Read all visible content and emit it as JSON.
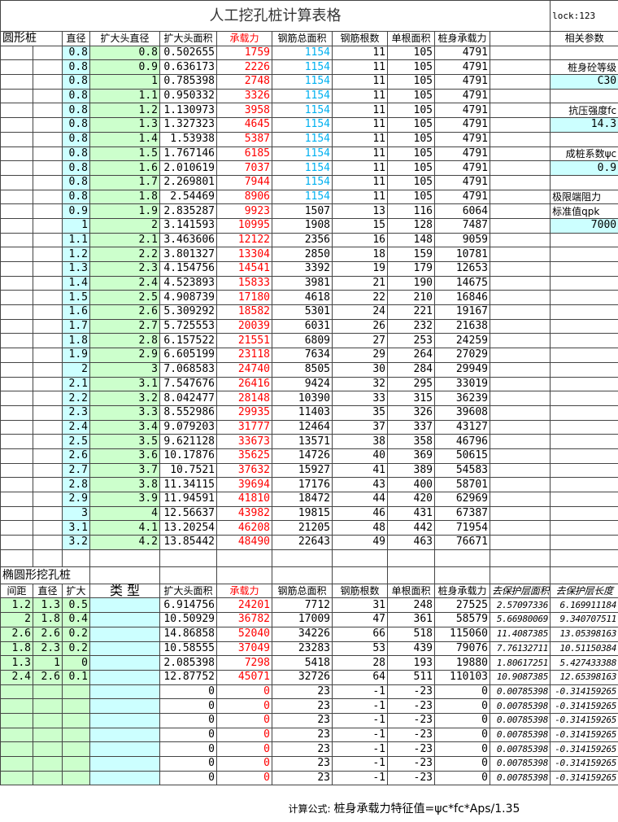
{
  "title": "人工挖孔桩计算表格",
  "lock": "lock:123",
  "circular": {
    "section_label": "圆形桩",
    "headers": [
      "直径",
      "扩大头直径",
      "扩大头面积",
      "承载力",
      "钢筋总面积",
      "钢筋根数",
      "单根面积",
      "桩身承载力"
    ],
    "rows": [
      {
        "v": [
          "0.8",
          "0.8",
          "0.502655",
          "1759",
          "1154",
          "11",
          "105",
          "4791"
        ],
        "hl": true
      },
      {
        "v": [
          "0.8",
          "0.9",
          "0.636173",
          "2226",
          "1154",
          "11",
          "105",
          "4791"
        ],
        "hl": true
      },
      {
        "v": [
          "0.8",
          "1",
          "0.785398",
          "2748",
          "1154",
          "11",
          "105",
          "4791"
        ],
        "hl": true
      },
      {
        "v": [
          "0.8",
          "1.1",
          "0.950332",
          "3326",
          "1154",
          "11",
          "105",
          "4791"
        ],
        "hl": true
      },
      {
        "v": [
          "0.8",
          "1.2",
          "1.130973",
          "3958",
          "1154",
          "11",
          "105",
          "4791"
        ],
        "hl": true
      },
      {
        "v": [
          "0.8",
          "1.3",
          "1.327323",
          "4645",
          "1154",
          "11",
          "105",
          "4791"
        ],
        "hl": true
      },
      {
        "v": [
          "0.8",
          "1.4",
          "1.53938",
          "5387",
          "1154",
          "11",
          "105",
          "4791"
        ],
        "hl": true
      },
      {
        "v": [
          "0.8",
          "1.5",
          "1.767146",
          "6185",
          "1154",
          "11",
          "105",
          "4791"
        ],
        "hl": true
      },
      {
        "v": [
          "0.8",
          "1.6",
          "2.010619",
          "7037",
          "1154",
          "11",
          "105",
          "4791"
        ],
        "hl": true
      },
      {
        "v": [
          "0.8",
          "1.7",
          "2.269801",
          "7944",
          "1154",
          "11",
          "105",
          "4791"
        ],
        "hl": true
      },
      {
        "v": [
          "0.8",
          "1.8",
          "2.54469",
          "8906",
          "1154",
          "11",
          "105",
          "4791"
        ],
        "hl": true
      },
      {
        "v": [
          "0.9",
          "1.9",
          "2.835287",
          "9923",
          "1507",
          "13",
          "116",
          "6064"
        ]
      },
      {
        "v": [
          "1",
          "2",
          "3.141593",
          "10995",
          "1908",
          "15",
          "128",
          "7487"
        ]
      },
      {
        "v": [
          "1.1",
          "2.1",
          "3.463606",
          "12122",
          "2356",
          "16",
          "148",
          "9059"
        ]
      },
      {
        "v": [
          "1.2",
          "2.2",
          "3.801327",
          "13304",
          "2850",
          "18",
          "159",
          "10781"
        ]
      },
      {
        "v": [
          "1.3",
          "2.3",
          "4.154756",
          "14541",
          "3392",
          "19",
          "179",
          "12653"
        ]
      },
      {
        "v": [
          "1.4",
          "2.4",
          "4.523893",
          "15833",
          "3981",
          "21",
          "190",
          "14675"
        ]
      },
      {
        "v": [
          "1.5",
          "2.5",
          "4.908739",
          "17180",
          "4618",
          "22",
          "210",
          "16846"
        ]
      },
      {
        "v": [
          "1.6",
          "2.6",
          "5.309292",
          "18582",
          "5301",
          "24",
          "221",
          "19167"
        ]
      },
      {
        "v": [
          "1.7",
          "2.7",
          "5.725553",
          "20039",
          "6031",
          "26",
          "232",
          "21638"
        ]
      },
      {
        "v": [
          "1.8",
          "2.8",
          "6.157522",
          "21551",
          "6809",
          "27",
          "253",
          "24259"
        ]
      },
      {
        "v": [
          "1.9",
          "2.9",
          "6.605199",
          "23118",
          "7634",
          "29",
          "264",
          "27029"
        ]
      },
      {
        "v": [
          "2",
          "3",
          "7.068583",
          "24740",
          "8505",
          "30",
          "284",
          "29949"
        ]
      },
      {
        "v": [
          "2.1",
          "3.1",
          "7.547676",
          "26416",
          "9424",
          "32",
          "295",
          "33019"
        ]
      },
      {
        "v": [
          "2.2",
          "3.2",
          "8.042477",
          "28148",
          "10390",
          "33",
          "315",
          "36239"
        ]
      },
      {
        "v": [
          "2.3",
          "3.3",
          "8.552986",
          "29935",
          "11403",
          "35",
          "326",
          "39608"
        ]
      },
      {
        "v": [
          "2.4",
          "3.4",
          "9.079203",
          "31777",
          "12464",
          "37",
          "337",
          "43127"
        ]
      },
      {
        "v": [
          "2.5",
          "3.5",
          "9.621128",
          "33673",
          "13571",
          "38",
          "358",
          "46796"
        ]
      },
      {
        "v": [
          "2.6",
          "3.6",
          "10.17876",
          "35625",
          "14726",
          "40",
          "369",
          "50615"
        ]
      },
      {
        "v": [
          "2.7",
          "3.7",
          "10.7521",
          "37632",
          "15927",
          "41",
          "389",
          "54583"
        ]
      },
      {
        "v": [
          "2.8",
          "3.8",
          "11.34115",
          "39694",
          "17176",
          "43",
          "400",
          "58701"
        ]
      },
      {
        "v": [
          "2.9",
          "3.9",
          "11.94591",
          "41810",
          "18472",
          "44",
          "420",
          "62969"
        ]
      },
      {
        "v": [
          "3",
          "4",
          "12.56637",
          "43982",
          "19815",
          "46",
          "431",
          "67387"
        ]
      },
      {
        "v": [
          "3.1",
          "4.1",
          "13.20254",
          "46208",
          "21205",
          "48",
          "442",
          "71954"
        ]
      },
      {
        "v": [
          "3.2",
          "4.2",
          "13.85442",
          "48490",
          "22643",
          "49",
          "463",
          "76671"
        ]
      }
    ]
  },
  "params": {
    "header": "相关参数",
    "items": [
      {
        "label": "桩身砼等级",
        "value": "C30"
      },
      {
        "label": "抗压强度fc",
        "value": "14.3"
      },
      {
        "label": "成桩系数ψc",
        "value": "0.9"
      },
      {
        "label": "极限端阻力",
        "label2": "标准值qpk",
        "value": "7000"
      }
    ]
  },
  "elliptical": {
    "section_label": "椭圆形挖孔桩",
    "headers": [
      "间距",
      "直径",
      "扩大",
      "类 型",
      "扩大头面积",
      "承载力",
      "钢筋总面积",
      "钢筋根数",
      "单根面积",
      "桩身承载力",
      "去保护层面积",
      "去保护层长度"
    ],
    "rows": [
      [
        "1.2",
        "1.3",
        "0.5",
        "",
        "6.914756",
        "24201",
        "7712",
        "31",
        "248",
        "27525",
        "2.57097336",
        "6.169911184"
      ],
      [
        "2",
        "1.8",
        "0.4",
        "",
        "10.50929",
        "36782",
        "17009",
        "47",
        "361",
        "58579",
        "5.66980069",
        "9.340707511"
      ],
      [
        "2.6",
        "2.6",
        "0.2",
        "",
        "14.86858",
        "52040",
        "34226",
        "66",
        "518",
        "115060",
        "11.4087385",
        "13.05398163"
      ],
      [
        "1.8",
        "2.3",
        "0.2",
        "",
        "10.58555",
        "37049",
        "23283",
        "53",
        "439",
        "79076",
        "7.76132711",
        "10.51150384"
      ],
      [
        "1.3",
        "1",
        "0",
        "",
        "2.085398",
        "7298",
        "5418",
        "28",
        "193",
        "19880",
        "1.80617251",
        "5.427433388"
      ],
      [
        "2.4",
        "2.6",
        "0.1",
        "",
        "12.87752",
        "45071",
        "32726",
        "64",
        "511",
        "110103",
        "10.9087385",
        "12.65398163"
      ],
      [
        "",
        "",
        "",
        "",
        "0",
        "0",
        "23",
        "-1",
        "-23",
        "0",
        "0.00785398",
        "-0.314159265"
      ],
      [
        "",
        "",
        "",
        "",
        "0",
        "0",
        "23",
        "-1",
        "-23",
        "0",
        "0.00785398",
        "-0.314159265"
      ],
      [
        "",
        "",
        "",
        "",
        "0",
        "0",
        "23",
        "-1",
        "-23",
        "0",
        "0.00785398",
        "-0.314159265"
      ],
      [
        "",
        "",
        "",
        "",
        "0",
        "0",
        "23",
        "-1",
        "-23",
        "0",
        "0.00785398",
        "-0.314159265"
      ],
      [
        "",
        "",
        "",
        "",
        "0",
        "0",
        "23",
        "-1",
        "-23",
        "0",
        "0.00785398",
        "-0.314159265"
      ],
      [
        "",
        "",
        "",
        "",
        "0",
        "0",
        "23",
        "-1",
        "-23",
        "0",
        "0.00785398",
        "-0.314159265"
      ],
      [
        "",
        "",
        "",
        "",
        "0",
        "0",
        "23",
        "-1",
        "-23",
        "0",
        "0.00785398",
        "-0.314159265"
      ]
    ]
  },
  "formula": {
    "label": "计算公式:",
    "text": "桩身承载力特征值=ψc*fc*Aps/1.35"
  },
  "colors": {
    "input_blue": "#ccffff",
    "input_green": "#ccffcc",
    "capacity_red": "#ff0000",
    "rebar_cyan": "#00b0f0"
  }
}
